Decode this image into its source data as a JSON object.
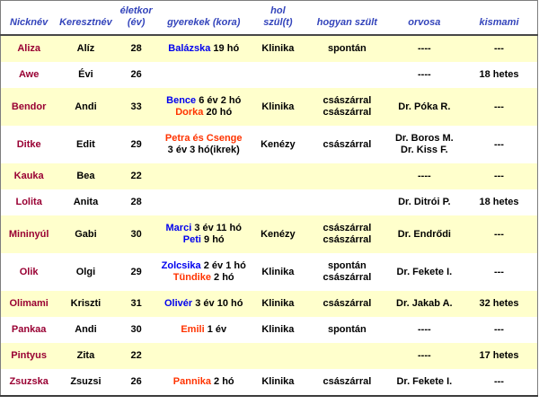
{
  "colors": {
    "nickname_text": "#990033",
    "boy_name": "#0000EE",
    "girl_name": "#FF3300",
    "header_text": "#3344BB",
    "row_yellow": "#FFFFCC",
    "row_white": "#FFFFFF",
    "border": "#7E7E7E"
  },
  "table": {
    "columns": [
      {
        "key": "nickname",
        "label": "Nicknév"
      },
      {
        "key": "firstname",
        "label": "Keresztnév"
      },
      {
        "key": "age",
        "label": "életkor\n(év)"
      },
      {
        "key": "children",
        "label": "gyerekek (kora)"
      },
      {
        "key": "birthplace",
        "label": "hol\nszül(t)"
      },
      {
        "key": "birthhow",
        "label": "hogyan szült"
      },
      {
        "key": "doctor",
        "label": "orvosa"
      },
      {
        "key": "kismami",
        "label": "kismami"
      }
    ],
    "rows": [
      {
        "shade": "yellow",
        "nickname": "Aliza",
        "firstname": "Alíz",
        "age": "28",
        "children": [
          [
            {
              "t": "Balázska",
              "c": "boy"
            },
            {
              "t": " 19 hó",
              "c": ""
            }
          ]
        ],
        "birthplace": [
          "Klinika"
        ],
        "birthhow": [
          "spontán"
        ],
        "doctor": [
          "----"
        ],
        "kismami": [
          "---"
        ]
      },
      {
        "shade": "white",
        "nickname": "Awe",
        "firstname": "Évi",
        "age": "26",
        "children": [],
        "birthplace": [],
        "birthhow": [],
        "doctor": [
          "----"
        ],
        "kismami": [
          "18 hetes"
        ]
      },
      {
        "shade": "yellow",
        "nickname": "Bendor",
        "firstname": "Andi",
        "age": "33",
        "children": [
          [
            {
              "t": "Bence",
              "c": "boy"
            },
            {
              "t": " 6 év 2 hó",
              "c": ""
            }
          ],
          [
            {
              "t": "Dorka",
              "c": "girl"
            },
            {
              "t": " 20 hó",
              "c": ""
            }
          ]
        ],
        "birthplace": [
          "Klinika"
        ],
        "birthhow": [
          "császárral",
          "császárral"
        ],
        "doctor": [
          "Dr. Póka R."
        ],
        "kismami": [
          "---"
        ]
      },
      {
        "shade": "white",
        "nickname": "Ditke",
        "firstname": "Edit",
        "age": "29",
        "children": [
          [
            {
              "t": "Petra és Csenge",
              "c": "girl"
            }
          ],
          [
            {
              "t": "3 év 3 hó(ikrek)",
              "c": ""
            }
          ]
        ],
        "birthplace": [
          "Kenézy"
        ],
        "birthhow": [
          "császárral"
        ],
        "doctor": [
          "Dr. Boros M.",
          "Dr. Kiss F."
        ],
        "kismami": [
          "---"
        ]
      },
      {
        "shade": "yellow",
        "nickname": "Kauka",
        "firstname": "Bea",
        "age": "22",
        "children": [],
        "birthplace": [],
        "birthhow": [],
        "doctor": [
          "----"
        ],
        "kismami": [
          "---"
        ]
      },
      {
        "shade": "white",
        "nickname": "Lolita",
        "firstname": "Anita",
        "age": "28",
        "children": [],
        "birthplace": [],
        "birthhow": [],
        "doctor": [
          "Dr. Ditrói P."
        ],
        "kismami": [
          "18 hetes"
        ]
      },
      {
        "shade": "yellow",
        "nickname": "Mininyúl",
        "firstname": "Gabi",
        "age": "30",
        "children": [
          [
            {
              "t": "Marci",
              "c": "boy"
            },
            {
              "t": " 3 év 11 hó",
              "c": ""
            }
          ],
          [
            {
              "t": "Peti",
              "c": "boy"
            },
            {
              "t": " 9 hó",
              "c": ""
            }
          ]
        ],
        "birthplace": [
          "Kenézy"
        ],
        "birthhow": [
          "császárral",
          "császárral"
        ],
        "doctor": [
          "Dr. Endrődi"
        ],
        "kismami": [
          "---"
        ]
      },
      {
        "shade": "white",
        "nickname": "Olik",
        "firstname": "Olgi",
        "age": "29",
        "children": [
          [
            {
              "t": "Zolcsika",
              "c": "boy"
            },
            {
              "t": " 2 év 1 hó",
              "c": ""
            }
          ],
          [
            {
              "t": "Tündike",
              "c": "girl"
            },
            {
              "t": " 2 hó",
              "c": ""
            }
          ]
        ],
        "birthplace": [
          "Klinika"
        ],
        "birthhow": [
          "spontán",
          "császárral"
        ],
        "doctor": [
          "Dr. Fekete I."
        ],
        "kismami": [
          "---"
        ]
      },
      {
        "shade": "yellow",
        "nickname": "Olimami",
        "firstname": "Kriszti",
        "age": "31",
        "children": [
          [
            {
              "t": "Olivér",
              "c": "boy"
            },
            {
              "t": " 3 év 10 hó",
              "c": ""
            }
          ]
        ],
        "birthplace": [
          "Klinika"
        ],
        "birthhow": [
          "császárral"
        ],
        "doctor": [
          "Dr. Jakab A."
        ],
        "kismami": [
          "32 hetes"
        ]
      },
      {
        "shade": "white",
        "nickname": "Pankaa",
        "firstname": "Andi",
        "age": "30",
        "children": [
          [
            {
              "t": "Emili",
              "c": "girl"
            },
            {
              "t": " 1 év",
              "c": ""
            }
          ]
        ],
        "birthplace": [
          "Klinika"
        ],
        "birthhow": [
          "spontán"
        ],
        "doctor": [
          "----"
        ],
        "kismami": [
          "---"
        ]
      },
      {
        "shade": "yellow",
        "nickname": "Pintyus",
        "firstname": "Zita",
        "age": "22",
        "children": [],
        "birthplace": [],
        "birthhow": [],
        "doctor": [
          "----"
        ],
        "kismami": [
          "17 hetes"
        ]
      },
      {
        "shade": "white",
        "nickname": "Zsuzska",
        "firstname": "Zsuzsi",
        "age": "26",
        "children": [
          [
            {
              "t": "Pannika",
              "c": "girl"
            },
            {
              "t": " 2 hó",
              "c": ""
            }
          ]
        ],
        "birthplace": [
          "Klinika"
        ],
        "birthhow": [
          "császárral"
        ],
        "doctor": [
          "Dr. Fekete I."
        ],
        "kismami": [
          "---"
        ]
      }
    ]
  }
}
